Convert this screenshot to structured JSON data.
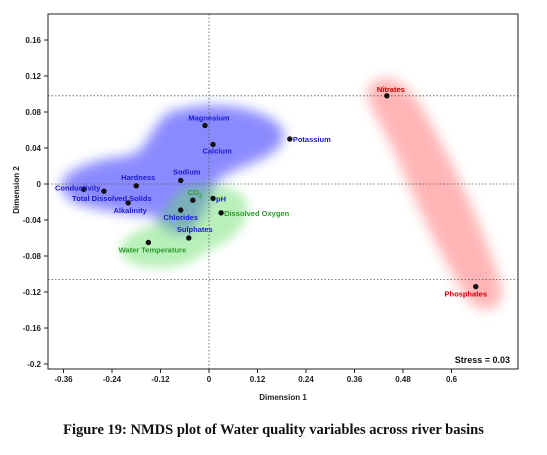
{
  "chart_data": {
    "type": "scatter",
    "xlabel": "Dimension 1",
    "ylabel": "Dimension 2",
    "xlim": [
      -0.4,
      0.68
    ],
    "ylim": [
      -0.205,
      0.18
    ],
    "xticks": [
      "-0.36",
      "-0.24",
      "-0.12",
      "0",
      "0.12",
      "0.24",
      "0.36",
      "0.48",
      "0.6"
    ],
    "xtick_values": [
      -0.36,
      -0.24,
      -0.12,
      0,
      0.12,
      0.24,
      0.36,
      0.48,
      0.6
    ],
    "yticks": [
      "0.16",
      "0.12",
      "0.08",
      "0.04",
      "0",
      "-0.04",
      "-0.08",
      "-0.12",
      "-0.16",
      "-0.2"
    ],
    "ytick_values": [
      0.16,
      0.12,
      0.08,
      0.04,
      0,
      -0.04,
      -0.08,
      -0.12,
      -0.16,
      -0.2
    ],
    "stress_label": "Stress = 0.03",
    "points": [
      {
        "label": "Nitrates",
        "x": 0.44,
        "y": 0.098,
        "color": "#cc0000"
      },
      {
        "label": "Phosphates",
        "x": 0.66,
        "y": -0.114,
        "color": "#cc0000"
      },
      {
        "label": "Magnesium",
        "x": -0.01,
        "y": 0.065,
        "color": "#1a1acc"
      },
      {
        "label": "Calcium",
        "x": 0.01,
        "y": 0.044,
        "color": "#1a1acc"
      },
      {
        "label": "Potassium",
        "x": 0.2,
        "y": 0.05,
        "color": "#1a1acc"
      },
      {
        "label": "Sodium",
        "x": -0.07,
        "y": 0.004,
        "color": "#1a1acc"
      },
      {
        "label": "Hardness",
        "x": -0.18,
        "y": -0.002,
        "color": "#1a1acc"
      },
      {
        "label": "Conductivity",
        "x": -0.31,
        "y": -0.006,
        "color": "#1a1acc"
      },
      {
        "label": "Total Dissolved Solids",
        "x": -0.26,
        "y": -0.008,
        "color": "#1a1acc"
      },
      {
        "label": "Alkalinity",
        "x": -0.2,
        "y": -0.021,
        "color": "#1a1acc"
      },
      {
        "label": "CO2",
        "x": -0.04,
        "y": -0.018,
        "color": "#2a9a2a"
      },
      {
        "label": "pH",
        "x": 0.01,
        "y": -0.016,
        "color": "#1a1acc"
      },
      {
        "label": "Chlorides",
        "x": -0.07,
        "y": -0.029,
        "color": "#1a1acc"
      },
      {
        "label": "Dissolved Oxygen",
        "x": 0.03,
        "y": -0.032,
        "color": "#2a9a2a"
      },
      {
        "label": "Sulphates",
        "x": -0.05,
        "y": -0.06,
        "color": "#1a1acc"
      },
      {
        "label": "Water Temperature",
        "x": -0.15,
        "y": -0.065,
        "color": "#2a9a2a"
      }
    ]
  },
  "caption": "Figure 19: NMDS plot of Water quality variables across river basins"
}
